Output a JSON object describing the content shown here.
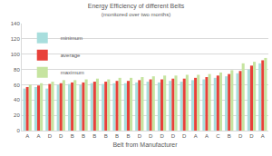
{
  "chart_data": {
    "type": "bar",
    "title": "Energy Efficiency of different Belts",
    "subtitle": "(monitored over two months)",
    "x_label": "Belt from Manufacturer",
    "categories": [
      "A",
      "A",
      "D",
      "D",
      "B",
      "B",
      "B",
      "B",
      "B",
      "B",
      "D",
      "D",
      "D",
      "D",
      "D",
      "A",
      "A",
      "C",
      "B",
      "D",
      "D",
      "A"
    ],
    "series": [
      {
        "name": "minimum",
        "color": "#a8dedd",
        "values": [
          55,
          57,
          55,
          60,
          61,
          60,
          62,
          61,
          62,
          62,
          63,
          64,
          63,
          65,
          64,
          66,
          67,
          69,
          71,
          75,
          80,
          88
        ]
      },
      {
        "name": "average",
        "color": "#e8413a",
        "values": [
          57,
          59,
          61,
          62,
          63,
          63,
          64,
          64,
          65,
          65,
          66,
          67,
          67,
          68,
          68,
          69,
          70,
          72,
          74,
          78,
          85,
          92
        ]
      },
      {
        "name": "maximum",
        "color": "#c6e4a0",
        "values": [
          60,
          62,
          64,
          66,
          66,
          67,
          68,
          67,
          69,
          69,
          70,
          71,
          72,
          72,
          73,
          73,
          74,
          76,
          79,
          88,
          90,
          95
        ]
      }
    ],
    "ylim": [
      0,
      140
    ],
    "yticks": [
      0,
      20,
      40,
      60,
      80,
      100,
      120,
      140
    ],
    "grid": true,
    "legend": "top-left"
  }
}
